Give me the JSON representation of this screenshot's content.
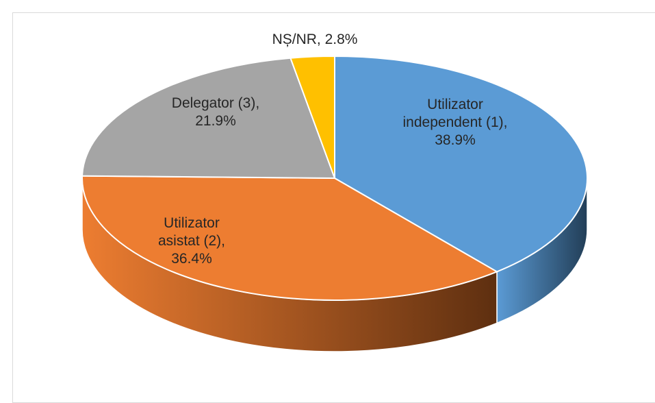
{
  "chart_data": {
    "type": "pie",
    "values": [
      38.9,
      36.4,
      21.9,
      2.8
    ],
    "value_labels": [
      "Utilizator independent (1), 38.9%",
      "Utilizator asistat (2), 36.4%",
      "Delegator (3), 21.9%",
      "NȘ/NR, 2.8%"
    ],
    "colors": [
      "#5b9bd5",
      "#ed7d31",
      "#a5a5a5",
      "#ffc000"
    ],
    "side_colors": [
      "#223e57",
      "#5e2f10",
      "#5a5a5a",
      "#8a6800"
    ]
  }
}
